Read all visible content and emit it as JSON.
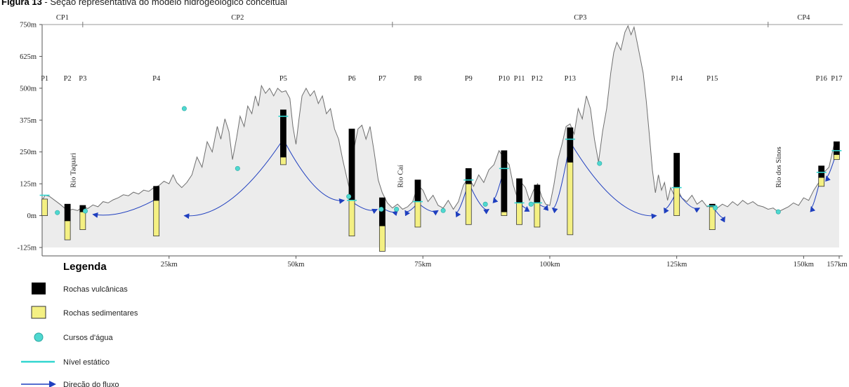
{
  "caption": {
    "label": "Figura 13",
    "text": " - Seção representativa do modelo hidrogeológico conceitual"
  },
  "y_axis": {
    "ticks": [
      {
        "value": 750,
        "label": "750m"
      },
      {
        "value": 625,
        "label": "625m"
      },
      {
        "value": 500,
        "label": "500m"
      },
      {
        "value": 375,
        "label": "375m"
      },
      {
        "value": 250,
        "label": "250m"
      },
      {
        "value": 125,
        "label": "125m"
      },
      {
        "value": 0,
        "label": "0m"
      },
      {
        "value": -125,
        "label": "-125m"
      }
    ]
  },
  "x_axis": {
    "ticks": [
      {
        "value": 25,
        "label": "25km"
      },
      {
        "value": 50,
        "label": "50km"
      },
      {
        "value": 75,
        "label": "75km"
      },
      {
        "value": 100,
        "label": "100km"
      },
      {
        "value": 125,
        "label": "125km"
      },
      {
        "value": 150,
        "label": "150km"
      },
      {
        "value": 157,
        "label": "157km"
      }
    ]
  },
  "sections": [
    {
      "label": "CP1",
      "from_km": 0,
      "to_km": 8
    },
    {
      "label": "CP2",
      "from_km": 8,
      "to_km": 69
    },
    {
      "label": "CP3",
      "from_km": 69,
      "to_km": 143
    },
    {
      "label": "CP4",
      "from_km": 143,
      "to_km": 157
    }
  ],
  "rivers": [
    {
      "label": "Rio Taquari",
      "km": 6
    },
    {
      "label": "Rio Caí",
      "km": 70.5
    },
    {
      "label": "Rio dos Sinos",
      "km": 145
    }
  ],
  "wells": [
    {
      "label": "P1",
      "km": 0.5,
      "volcanic": [],
      "sediment": [
        0,
        65
      ]
    },
    {
      "label": "P2",
      "km": 5,
      "volcanic": [
        -20,
        45
      ],
      "sediment": [
        -95,
        -20
      ]
    },
    {
      "label": "P3",
      "km": 8,
      "volcanic": [
        15,
        40
      ],
      "sediment": [
        -55,
        15
      ]
    },
    {
      "label": "P4",
      "km": 22.5,
      "volcanic": [
        60,
        115
      ],
      "sediment": [
        -80,
        60
      ]
    },
    {
      "label": "P5",
      "km": 47.5,
      "volcanic": [
        230,
        415
      ],
      "sediment": [
        200,
        230
      ]
    },
    {
      "label": "P6",
      "km": 61,
      "volcanic": [
        60,
        340
      ],
      "sediment": [
        -80,
        60
      ]
    },
    {
      "label": "P7",
      "km": 67,
      "volcanic": [
        -40,
        70
      ],
      "sediment": [
        -140,
        -40
      ]
    },
    {
      "label": "P8",
      "km": 74,
      "volcanic": [
        55,
        140
      ],
      "sediment": [
        -45,
        55
      ]
    },
    {
      "label": "P9",
      "km": 84,
      "volcanic": [
        125,
        185
      ],
      "sediment": [
        -35,
        125
      ]
    },
    {
      "label": "P10",
      "km": 91,
      "volcanic": [
        15,
        255
      ],
      "sediment": [
        0,
        15
      ]
    },
    {
      "label": "P11",
      "km": 94,
      "volcanic": [
        50,
        145
      ],
      "sediment": [
        -35,
        50
      ]
    },
    {
      "label": "P12",
      "km": 97.5,
      "volcanic": [
        50,
        120
      ],
      "sediment": [
        -45,
        50
      ]
    },
    {
      "label": "P13",
      "km": 104,
      "volcanic": [
        210,
        345
      ],
      "sediment": [
        -75,
        210
      ]
    },
    {
      "label": "P14",
      "km": 125,
      "volcanic": [
        110,
        245
      ],
      "sediment": [
        0,
        110
      ]
    },
    {
      "label": "P15",
      "km": 132,
      "volcanic": [
        35,
        45
      ],
      "sediment": [
        -55,
        35
      ]
    },
    {
      "label": "P16",
      "km": 153.5,
      "volcanic": [
        150,
        195
      ],
      "sediment": [
        115,
        150
      ]
    },
    {
      "label": "P17",
      "km": 156.5,
      "volcanic": [
        240,
        290
      ],
      "sediment": [
        220,
        240
      ]
    }
  ],
  "terrain": [
    [
      0,
      60
    ],
    [
      0.6,
      80
    ],
    [
      1.5,
      75
    ],
    [
      2.5,
      60
    ],
    [
      3.5,
      45
    ],
    [
      5,
      20
    ],
    [
      6,
      25
    ],
    [
      7,
      20
    ],
    [
      8,
      35
    ],
    [
      9,
      28
    ],
    [
      10,
      42
    ],
    [
      11,
      35
    ],
    [
      12,
      55
    ],
    [
      13,
      50
    ],
    [
      14,
      62
    ],
    [
      15,
      70
    ],
    [
      16,
      82
    ],
    [
      17,
      78
    ],
    [
      18,
      92
    ],
    [
      19,
      85
    ],
    [
      20,
      100
    ],
    [
      21,
      95
    ],
    [
      22,
      110
    ],
    [
      23,
      118
    ],
    [
      24,
      135
    ],
    [
      25,
      125
    ],
    [
      25.8,
      160
    ],
    [
      26.5,
      130
    ],
    [
      27.5,
      110
    ],
    [
      28.5,
      130
    ],
    [
      29.5,
      160
    ],
    [
      30.5,
      230
    ],
    [
      31.5,
      190
    ],
    [
      32.5,
      290
    ],
    [
      33.5,
      250
    ],
    [
      34.5,
      350
    ],
    [
      35.2,
      300
    ],
    [
      36,
      380
    ],
    [
      36.8,
      330
    ],
    [
      37.5,
      220
    ],
    [
      38.3,
      305
    ],
    [
      39,
      390
    ],
    [
      39.8,
      350
    ],
    [
      40.5,
      430
    ],
    [
      41.3,
      400
    ],
    [
      42,
      470
    ],
    [
      42.6,
      430
    ],
    [
      43.2,
      510
    ],
    [
      44,
      480
    ],
    [
      44.8,
      500
    ],
    [
      45.6,
      470
    ],
    [
      46.4,
      500
    ],
    [
      47.2,
      485
    ],
    [
      48,
      490
    ],
    [
      48.8,
      460
    ],
    [
      49.4,
      350
    ],
    [
      50,
      280
    ],
    [
      50.6,
      380
    ],
    [
      51.2,
      470
    ],
    [
      52,
      500
    ],
    [
      52.8,
      470
    ],
    [
      53.6,
      490
    ],
    [
      54.4,
      440
    ],
    [
      55.2,
      470
    ],
    [
      56,
      400
    ],
    [
      56.8,
      420
    ],
    [
      57.6,
      340
    ],
    [
      58.4,
      300
    ],
    [
      59.2,
      220
    ],
    [
      60,
      150
    ],
    [
      60.6,
      100
    ],
    [
      61.4,
      260
    ],
    [
      62.2,
      340
    ],
    [
      63,
      355
    ],
    [
      63.8,
      300
    ],
    [
      64.6,
      350
    ],
    [
      65.4,
      250
    ],
    [
      66.2,
      140
    ],
    [
      67,
      90
    ],
    [
      68,
      50
    ],
    [
      69,
      30
    ],
    [
      70,
      45
    ],
    [
      71,
      25
    ],
    [
      72,
      35
    ],
    [
      73,
      55
    ],
    [
      74,
      120
    ],
    [
      75,
      100
    ],
    [
      76,
      55
    ],
    [
      77,
      80
    ],
    [
      78,
      40
    ],
    [
      79,
      30
    ],
    [
      80,
      60
    ],
    [
      81,
      25
    ],
    [
      82,
      55
    ],
    [
      83,
      120
    ],
    [
      84,
      150
    ],
    [
      85,
      115
    ],
    [
      86,
      160
    ],
    [
      87,
      130
    ],
    [
      88,
      180
    ],
    [
      89,
      200
    ],
    [
      90,
      255
    ],
    [
      91,
      225
    ],
    [
      92,
      200
    ],
    [
      92.8,
      120
    ],
    [
      93.6,
      70
    ],
    [
      94.4,
      130
    ],
    [
      95.2,
      110
    ],
    [
      96,
      60
    ],
    [
      96.8,
      100
    ],
    [
      97.6,
      125
    ],
    [
      98.4,
      75
    ],
    [
      99.2,
      45
    ],
    [
      100,
      40
    ],
    [
      100.8,
      120
    ],
    [
      101.6,
      220
    ],
    [
      102.4,
      280
    ],
    [
      103.2,
      350
    ],
    [
      104,
      360
    ],
    [
      104.8,
      320
    ],
    [
      105.6,
      420
    ],
    [
      106.4,
      380
    ],
    [
      107.2,
      470
    ],
    [
      108,
      420
    ],
    [
      108.8,
      300
    ],
    [
      109.6,
      210
    ],
    [
      110.4,
      330
    ],
    [
      111.2,
      420
    ],
    [
      112,
      560
    ],
    [
      112.6,
      640
    ],
    [
      113.2,
      680
    ],
    [
      114,
      650
    ],
    [
      114.8,
      720
    ],
    [
      115.4,
      745
    ],
    [
      116,
      710
    ],
    [
      116.6,
      740
    ],
    [
      117.2,
      680
    ],
    [
      117.8,
      620
    ],
    [
      118.4,
      560
    ],
    [
      119,
      450
    ],
    [
      119.6,
      320
    ],
    [
      120.2,
      180
    ],
    [
      120.8,
      90
    ],
    [
      121.4,
      160
    ],
    [
      122,
      100
    ],
    [
      122.6,
      130
    ],
    [
      123.2,
      60
    ],
    [
      123.8,
      110
    ],
    [
      124.4,
      85
    ],
    [
      125,
      110
    ],
    [
      126,
      70
    ],
    [
      127,
      55
    ],
    [
      128,
      80
    ],
    [
      129,
      45
    ],
    [
      130,
      60
    ],
    [
      131,
      35
    ],
    [
      132,
      40
    ],
    [
      133,
      30
    ],
    [
      134,
      45
    ],
    [
      135,
      35
    ],
    [
      136,
      55
    ],
    [
      137,
      40
    ],
    [
      138,
      60
    ],
    [
      139,
      45
    ],
    [
      140,
      55
    ],
    [
      141,
      40
    ],
    [
      142,
      35
    ],
    [
      143,
      25
    ],
    [
      144,
      30
    ],
    [
      145,
      15
    ],
    [
      146,
      25
    ],
    [
      147,
      35
    ],
    [
      148,
      50
    ],
    [
      149,
      40
    ],
    [
      150,
      70
    ],
    [
      151,
      60
    ],
    [
      152,
      100
    ],
    [
      153,
      130
    ],
    [
      154,
      170
    ],
    [
      155,
      190
    ],
    [
      156,
      280
    ],
    [
      157,
      290
    ]
  ],
  "streams": [
    [
      3,
      12
    ],
    [
      8.5,
      18
    ],
    [
      28,
      420
    ],
    [
      38.5,
      185
    ],
    [
      60.4,
      75
    ],
    [
      66.8,
      25
    ],
    [
      69.8,
      25
    ],
    [
      79,
      20
    ],
    [
      87.3,
      45
    ],
    [
      96.3,
      45
    ],
    [
      109.8,
      205
    ],
    [
      132.6,
      30
    ],
    [
      145,
      15
    ]
  ],
  "static_levels": [
    [
      0.5,
      80
    ],
    [
      47.5,
      390
    ],
    [
      61,
      60
    ],
    [
      74,
      55
    ],
    [
      84,
      140
    ],
    [
      91,
      185
    ],
    [
      94,
      50
    ],
    [
      97.5,
      50
    ],
    [
      104,
      300
    ],
    [
      125,
      110
    ],
    [
      132,
      38
    ],
    [
      153.5,
      170
    ],
    [
      156.5,
      255
    ]
  ],
  "flows": [
    [
      47.5,
      300,
      28,
      0
    ],
    [
      47.5,
      300,
      59.5,
      60
    ],
    [
      22,
      60,
      10,
      5
    ],
    [
      61,
      55,
      66,
      25
    ],
    [
      67,
      30,
      70,
      20
    ],
    [
      74,
      50,
      71.5,
      20
    ],
    [
      74,
      50,
      78,
      20
    ],
    [
      84,
      130,
      81.5,
      15
    ],
    [
      84,
      130,
      88,
      25
    ],
    [
      91,
      185,
      89,
      70
    ],
    [
      94,
      50,
      95.5,
      35
    ],
    [
      97.5,
      50,
      99.5,
      40
    ],
    [
      104,
      290,
      100.5,
      30
    ],
    [
      104,
      290,
      121,
      0
    ],
    [
      125,
      95,
      122.5,
      30
    ],
    [
      125,
      95,
      129.5,
      30
    ],
    [
      132,
      38,
      134.5,
      -5
    ],
    [
      153.5,
      160,
      151.5,
      35
    ],
    [
      156.5,
      250,
      154.5,
      155
    ]
  ],
  "legend": {
    "title": "Legenda",
    "items": [
      {
        "label": "Rochas vulcânicas",
        "swatch": "#000000"
      },
      {
        "label": "Rochas sedimentares",
        "swatch": "#f4f083"
      },
      {
        "label": "Cursos d'água",
        "swatch": "#4fd8d0"
      },
      {
        "label": "Nível estático",
        "swatch": "#32d6d0"
      },
      {
        "label": "Direção do fluxo",
        "swatch": "#1f3fbf"
      }
    ]
  },
  "colors": {
    "terrain_fill": "#ececec",
    "terrain_line": "#6f6f6f",
    "volcanic": "#000000",
    "sediment": "#f4f083",
    "stream": "#4fd8d0",
    "static_level": "#32d6d0",
    "flow": "#1f3fbf"
  }
}
